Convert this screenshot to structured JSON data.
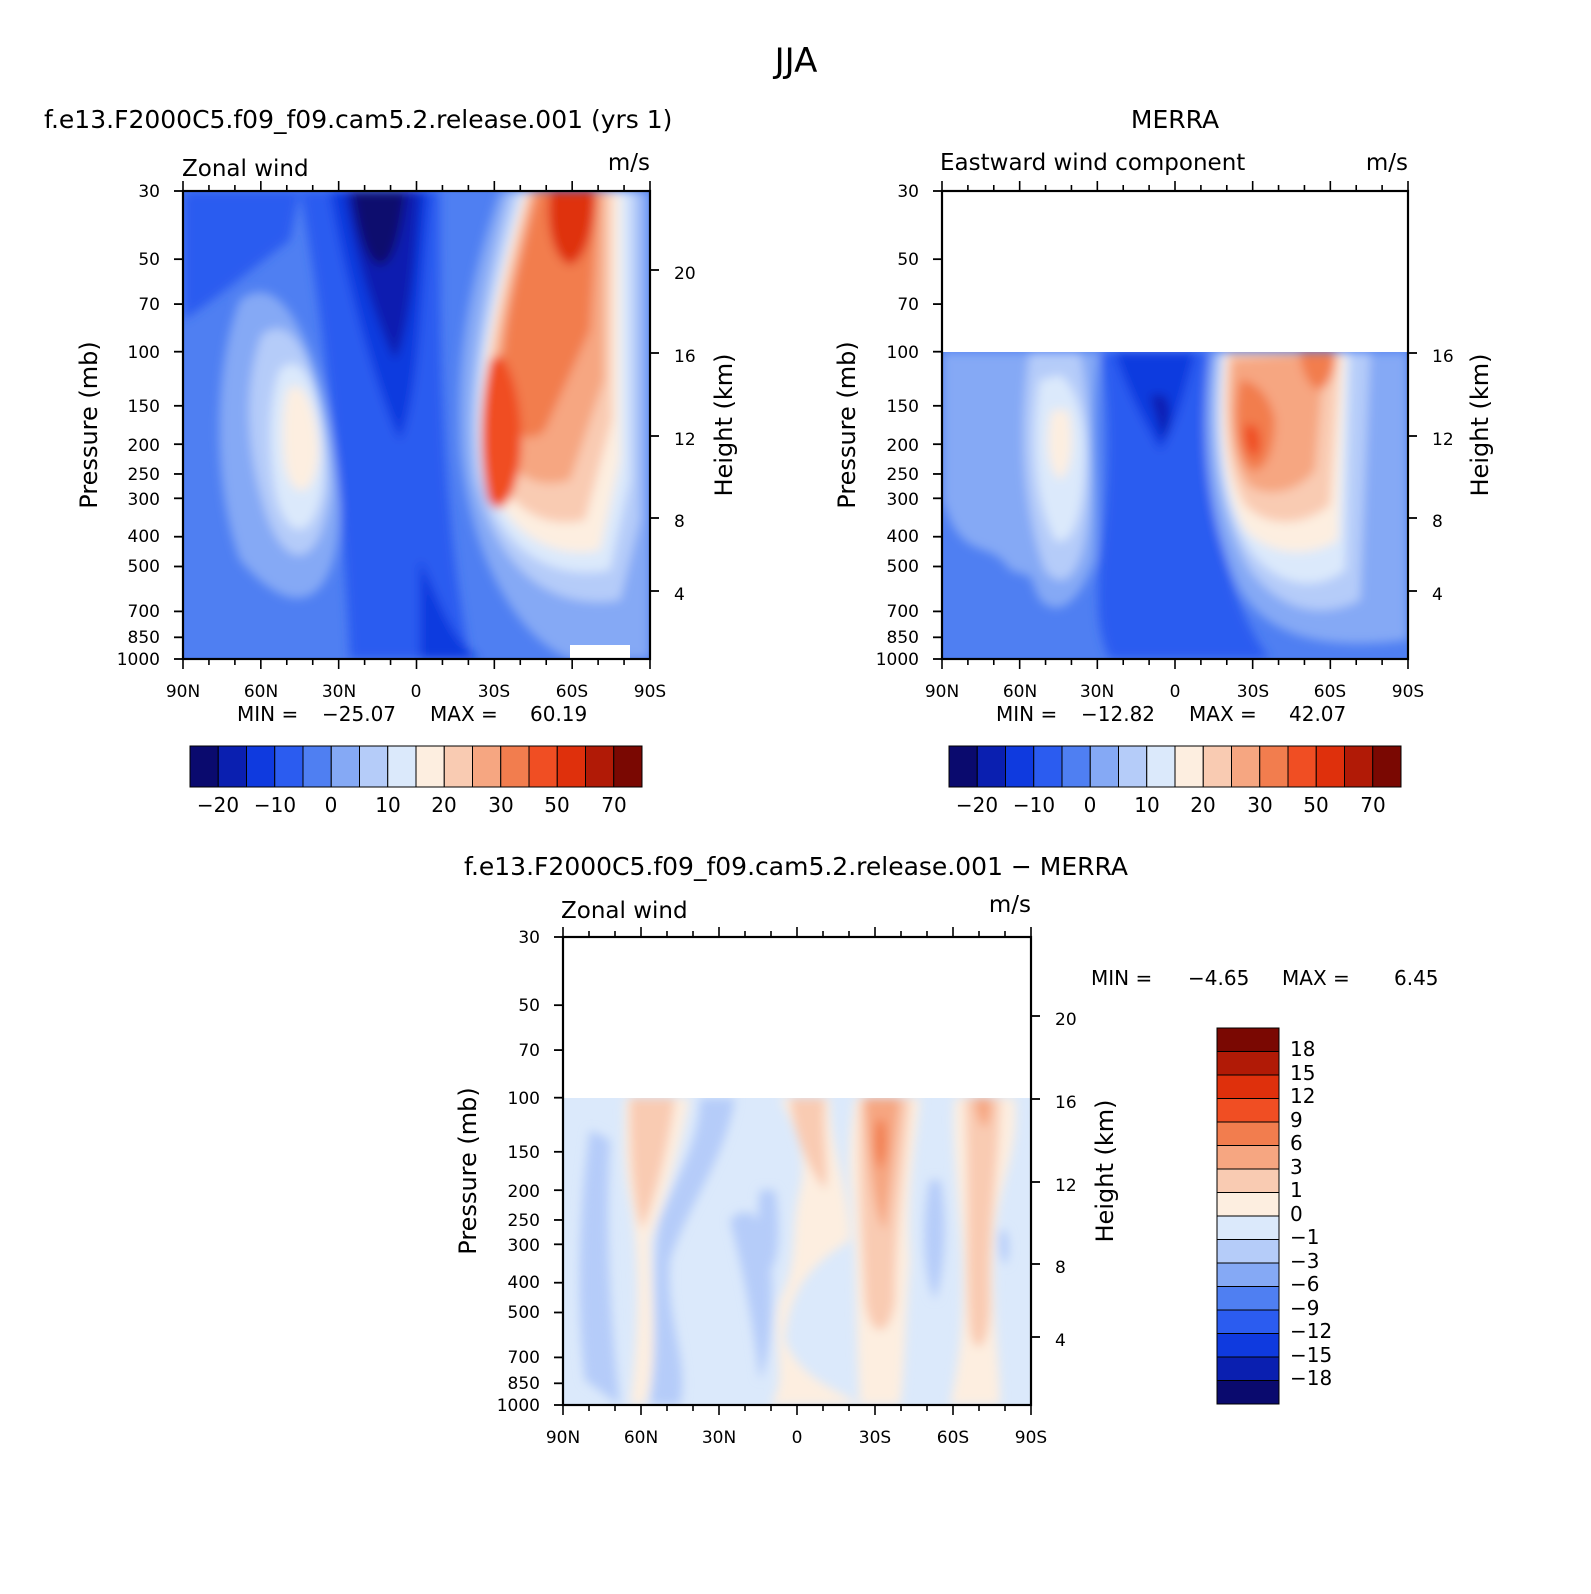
{
  "figure": {
    "title": "JJA"
  },
  "colors": {
    "model_obs_palette": [
      "#0a0a6e",
      "#0a1fb0",
      "#0f3adf",
      "#2b5cf0",
      "#4f7ff2",
      "#85a9f5",
      "#b5ccf9",
      "#dbe9fb",
      "#fdeee0",
      "#f9cbb2",
      "#f6a681",
      "#f27d4e",
      "#f04e23",
      "#df300c",
      "#b11a06",
      "#7a0802"
    ],
    "diff_palette": [
      "#0a0a6e",
      "#0a1fb0",
      "#0f3adf",
      "#2b5cf0",
      "#4f7ff2",
      "#85a9f5",
      "#b5ccf9",
      "#dbe9fb",
      "#fdeee0",
      "#f9cbb2",
      "#f6a681",
      "#f27d4e",
      "#f04e23",
      "#df300c",
      "#b11a06",
      "#7a0802"
    ]
  },
  "chart_data": [
    {
      "type": "heatmap",
      "panel_title": "f.e13.F2000C5.f09_f09.cam5.2.release.001 (yrs 1)",
      "variable": "Zonal wind",
      "units": "m/s",
      "ylabel": "Pressure (mb)",
      "y2label": "Height (km)",
      "x_ticks": [
        "90N",
        "60N",
        "30N",
        "0",
        "30S",
        "60S",
        "90S"
      ],
      "y_ticks": [
        "30",
        "50",
        "70",
        "100",
        "150",
        "200",
        "250",
        "300",
        "400",
        "500",
        "700",
        "850",
        "1000"
      ],
      "y2_ticks": [
        "20",
        "16",
        "12",
        "8",
        "4"
      ],
      "x_range": [
        90,
        -90
      ],
      "y_range_mb": [
        30,
        1000
      ],
      "y_scale": "log",
      "min_label": "MIN =",
      "min_value": "−25.07",
      "max_label": "MAX =",
      "max_value": "60.19",
      "colorbar_labels": [
        "−20",
        "−10",
        "0",
        "10",
        "20",
        "30",
        "50",
        "70"
      ],
      "features": [
        {
          "kind": "easterly minimum",
          "lat": 20,
          "p_mb": 30,
          "value": -25
        },
        {
          "kind": "westerly jet",
          "lat": -30,
          "p_mb": 200,
          "value": 45
        },
        {
          "kind": "westerly jet",
          "lat": -60,
          "p_mb": 30,
          "value": 60
        },
        {
          "kind": "westerly jet",
          "lat": 45,
          "p_mb": 200,
          "value": 20
        }
      ]
    },
    {
      "type": "heatmap",
      "panel_title": "MERRA",
      "variable": "Eastward wind component",
      "units": "m/s",
      "ylabel": "Pressure (mb)",
      "y2label": "Height (km)",
      "x_ticks": [
        "90N",
        "60N",
        "30N",
        "0",
        "30S",
        "60S",
        "90S"
      ],
      "y_ticks": [
        "30",
        "50",
        "70",
        "100",
        "150",
        "200",
        "250",
        "300",
        "400",
        "500",
        "700",
        "850",
        "1000"
      ],
      "y2_ticks": [
        "16",
        "12",
        "8",
        "4"
      ],
      "x_range": [
        90,
        -90
      ],
      "y_range_mb": [
        30,
        1000
      ],
      "y_scale": "log",
      "data_top_mb": 100,
      "min_label": "MIN =",
      "min_value": "−12.82",
      "max_label": "MAX =",
      "max_value": "42.07",
      "colorbar_labels": [
        "−20",
        "−10",
        "0",
        "10",
        "20",
        "30",
        "50",
        "70"
      ],
      "features": [
        {
          "kind": "easterly minimum",
          "lat": 8,
          "p_mb": 150,
          "value": -12
        },
        {
          "kind": "westerly jet",
          "lat": -30,
          "p_mb": 200,
          "value": 42
        },
        {
          "kind": "westerly jet",
          "lat": 45,
          "p_mb": 200,
          "value": 20
        }
      ]
    },
    {
      "type": "heatmap",
      "panel_title": "f.e13.F2000C5.f09_f09.cam5.2.release.001 − MERRA",
      "variable": "Zonal wind",
      "units": "m/s",
      "ylabel": "Pressure (mb)",
      "y2label": "Height (km)",
      "x_ticks": [
        "90N",
        "60N",
        "30N",
        "0",
        "30S",
        "60S",
        "90S"
      ],
      "y_ticks": [
        "30",
        "50",
        "70",
        "100",
        "150",
        "200",
        "250",
        "300",
        "400",
        "500",
        "700",
        "850",
        "1000"
      ],
      "y2_ticks": [
        "20",
        "16",
        "12",
        "8",
        "4"
      ],
      "x_range": [
        90,
        -90
      ],
      "y_range_mb": [
        30,
        1000
      ],
      "y_scale": "log",
      "data_top_mb": 100,
      "min_label": "MIN =",
      "min_value": "−4.65",
      "max_label": "MAX =",
      "max_value": "6.45",
      "colorbar_labels": [
        "18",
        "15",
        "12",
        "9",
        "6",
        "3",
        "1",
        "0",
        "−1",
        "−3",
        "−6",
        "−9",
        "−12",
        "−15",
        "−18"
      ],
      "features": [
        {
          "kind": "positive difference",
          "lat": -30,
          "p_mb": 150,
          "value": 6
        },
        {
          "kind": "positive difference",
          "lat": 58,
          "p_mb": 150,
          "value": 2
        },
        {
          "kind": "positive difference",
          "lat": -70,
          "p_mb": 100,
          "value": 3
        },
        {
          "kind": "negative difference",
          "lat": 40,
          "p_mb": 400,
          "value": -2
        },
        {
          "kind": "negative difference",
          "lat": -50,
          "p_mb": 300,
          "value": -2
        }
      ]
    }
  ]
}
